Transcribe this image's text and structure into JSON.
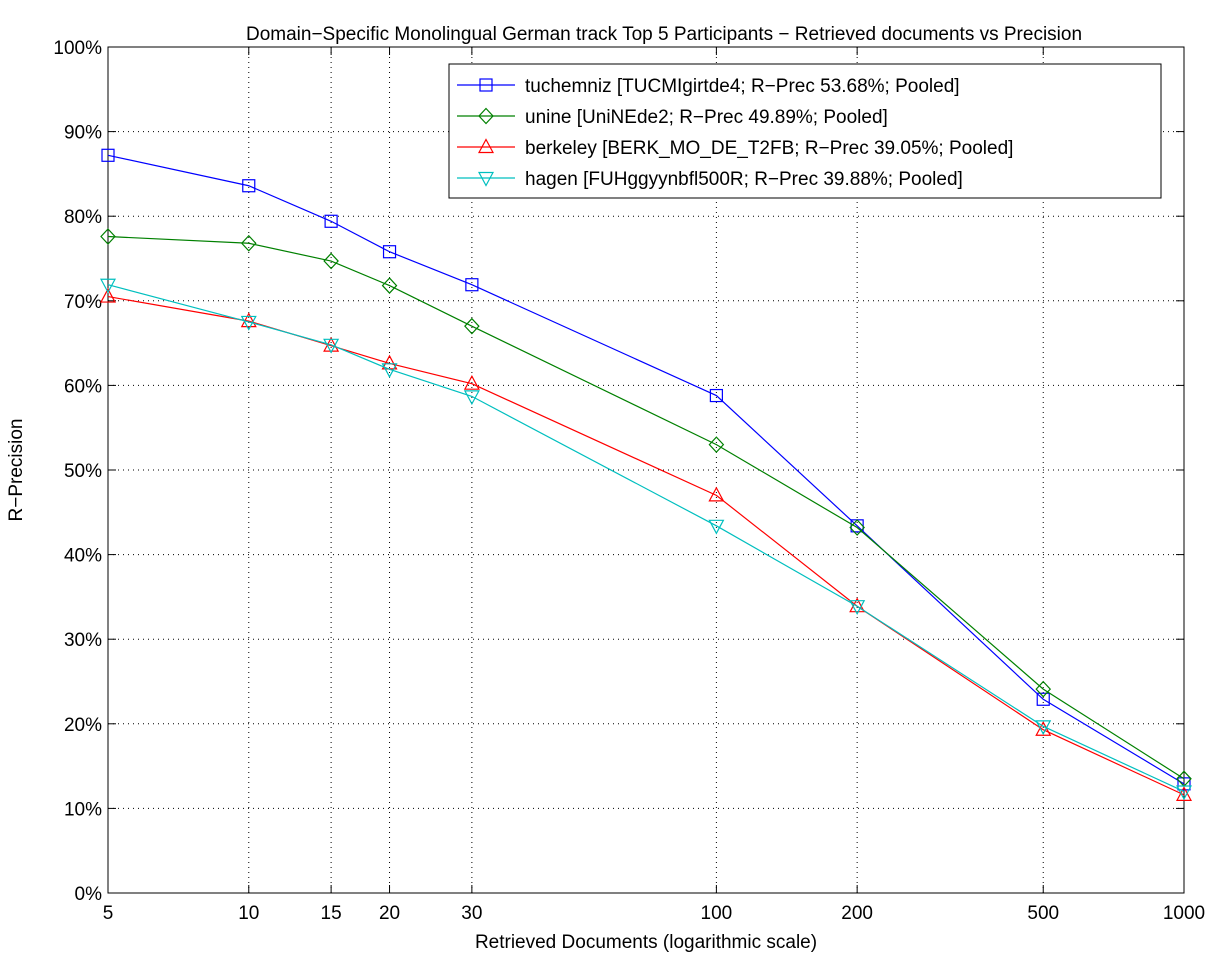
{
  "chart_data": {
    "type": "line",
    "title": "Domain−Specific Monolingual German track Top 5 Participants − Retrieved documents vs Precision",
    "xlabel": "Retrieved Documents (logarithmic scale)",
    "ylabel": "R−Precision",
    "x_scale": "log",
    "x": [
      5,
      10,
      15,
      20,
      30,
      100,
      200,
      500,
      1000
    ],
    "x_tick_labels": [
      "5",
      "10",
      "15",
      "20",
      "30",
      "100",
      "200",
      "500",
      "1000"
    ],
    "ylim": [
      0,
      100
    ],
    "y_ticks": [
      0,
      10,
      20,
      30,
      40,
      50,
      60,
      70,
      80,
      90,
      100
    ],
    "y_tick_labels": [
      "0%",
      "10%",
      "20%",
      "30%",
      "40%",
      "50%",
      "60%",
      "70%",
      "80%",
      "90%",
      "100%"
    ],
    "grid": true,
    "legend_position": "top-right",
    "series": [
      {
        "name": "tuchemniz [TUCMIgirtde4; R−Prec 53.68%; Pooled]",
        "color": "#0000ff",
        "marker": "square",
        "values": [
          87.2,
          83.6,
          79.4,
          75.8,
          71.9,
          58.8,
          43.4,
          22.9,
          12.9
        ]
      },
      {
        "name": "unine [UniNEde2; R−Prec 49.89%; Pooled]",
        "color": "#008000",
        "marker": "diamond",
        "values": [
          77.6,
          76.8,
          74.7,
          71.8,
          67.0,
          53.0,
          43.2,
          24.1,
          13.5
        ]
      },
      {
        "name": "berkeley [BERK_MO_DE_T2FB; R−Prec 39.05%; Pooled]",
        "color": "#ff0000",
        "marker": "triangle-up",
        "values": [
          70.5,
          67.6,
          64.7,
          62.6,
          60.2,
          47.0,
          33.9,
          19.3,
          11.6
        ]
      },
      {
        "name": "hagen [FUHggyynbfl500R; R−Prec 39.88%; Pooled]",
        "color": "#00bfbf",
        "marker": "triangle-down",
        "values": [
          71.9,
          67.5,
          64.8,
          61.9,
          58.7,
          43.4,
          33.9,
          19.7,
          12.0
        ]
      }
    ]
  }
}
